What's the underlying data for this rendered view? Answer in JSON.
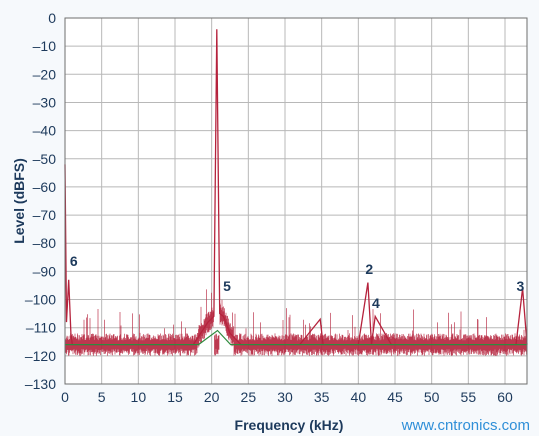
{
  "chart_data": {
    "type": "line",
    "title": "",
    "xlabel": "Frequency (kHz)",
    "ylabel": "Level (dBFS)",
    "xlim": [
      0,
      63
    ],
    "ylim": [
      -130,
      0
    ],
    "x_ticks": [
      0,
      5,
      10,
      15,
      20,
      25,
      30,
      35,
      40,
      45,
      50,
      55,
      60
    ],
    "y_ticks": [
      0,
      -10,
      -20,
      -30,
      -40,
      -50,
      -60,
      -70,
      -80,
      -90,
      -100,
      -110,
      -120,
      -130
    ],
    "x_tick_labels": [
      "0",
      "5",
      "10",
      "15",
      "20",
      "25",
      "30",
      "35",
      "40",
      "45",
      "50",
      "55",
      "60"
    ],
    "y_tick_labels": [
      "0",
      "–10",
      "–20",
      "–30",
      "–40",
      "–50",
      "–60",
      "–70",
      "–80",
      "–90",
      "–100",
      "–110",
      "–120",
      "–130"
    ],
    "grid": true,
    "colors": {
      "spectrum": "#b5223c",
      "reference": "#2e8b3e",
      "grid": "#b8b8b8",
      "text": "#1d3a5c"
    },
    "series": [
      {
        "x": [
          0,
          0.2,
          0.5,
          0.8,
          1.0,
          2,
          4,
          6,
          8,
          10,
          12,
          14,
          16,
          17.5,
          18.5,
          19.5,
          20.3,
          20.7,
          21.1,
          21.6,
          22.5,
          24,
          26,
          28,
          30,
          32,
          34.8,
          35.2,
          38,
          40,
          41.3,
          41.8,
          42.3,
          44.5,
          46,
          48,
          50,
          52,
          54,
          56,
          58,
          60,
          61.5,
          62.4,
          63
        ],
        "y": [
          -52,
          -108,
          -93,
          -112,
          -116,
          -116,
          -116,
          -116,
          -116,
          -116,
          -116,
          -116,
          -116,
          -116,
          -112,
          -108,
          -106,
          -4,
          -105,
          -106,
          -112,
          -116,
          -116,
          -116,
          -116,
          -116,
          -107,
          -116,
          -116,
          -116,
          -94,
          -116,
          -106,
          -116,
          -116,
          -116,
          -116,
          -116,
          -116,
          -116,
          -116,
          -116,
          -116,
          -96,
          -116
        ]
      },
      {
        "x": [
          0,
          18.2,
          20.8,
          22.6,
          63
        ],
        "y": [
          -116,
          -116,
          -111,
          -116,
          -116
        ]
      }
    ],
    "annotations": [
      {
        "label": "6",
        "x": 1.2,
        "y": -88
      },
      {
        "label": "5",
        "x": 22.1,
        "y": -97
      },
      {
        "label": "2",
        "x": 41.5,
        "y": -91
      },
      {
        "label": "4",
        "x": 42.4,
        "y": -103
      },
      {
        "label": "3",
        "x": 62.1,
        "y": -97
      }
    ]
  },
  "watermark": "www.cntronics.com"
}
